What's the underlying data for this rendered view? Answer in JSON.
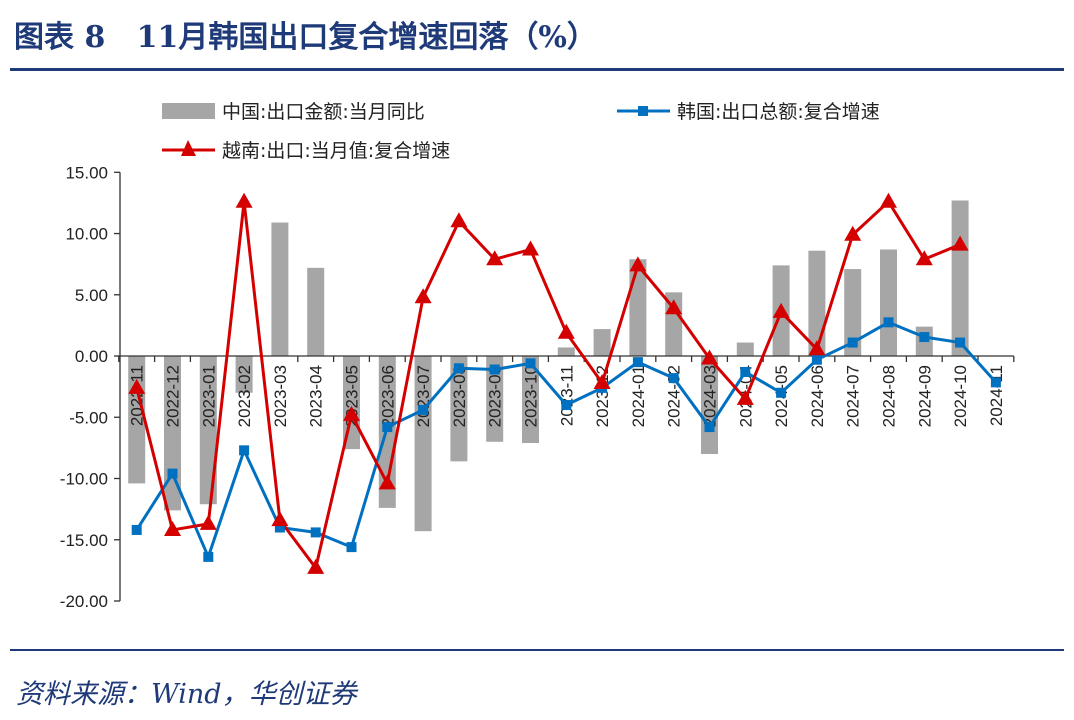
{
  "header": {
    "title": "图表 8   11月韩国出口复合增速回落（%）"
  },
  "footer": {
    "source": "资料来源：Wind，华创证券"
  },
  "chart_data": {
    "type": "bar+line",
    "title": "",
    "xlabel": "",
    "ylabel": "",
    "ylim": [
      -20,
      15
    ],
    "yticks": [
      "15.00",
      "10.00",
      "5.00",
      "0.00",
      "-5.00",
      "-10.00",
      "-15.00",
      "-20.00"
    ],
    "grid": false,
    "legend_placement": "top",
    "categories": [
      "2022-11",
      "2022-12",
      "2023-01",
      "2023-02",
      "2023-03",
      "2023-04",
      "2023-05",
      "2023-06",
      "2023-07",
      "2023-08",
      "2023-09",
      "2023-10",
      "2023-11",
      "2023-12",
      "2024-01",
      "2024-02",
      "2024-03",
      "2024-04",
      "2024-05",
      "2024-06",
      "2024-07",
      "2024-08",
      "2024-09",
      "2024-10",
      "2024-11"
    ],
    "series": [
      {
        "name": "中国:出口金额:当月同比",
        "type": "bar",
        "color": "#a6a6a6",
        "values": [
          -10.4,
          -12.6,
          -12.1,
          -3.0,
          10.9,
          7.2,
          -7.6,
          -12.4,
          -14.3,
          -8.6,
          -7.0,
          -7.1,
          0.7,
          2.2,
          7.9,
          5.2,
          -8.0,
          1.1,
          7.4,
          8.6,
          7.1,
          8.7,
          2.4,
          12.7,
          null
        ]
      },
      {
        "name": "韩国:出口总额:复合增速",
        "type": "line",
        "marker": "square",
        "color": "#0070c0",
        "values": [
          -14.2,
          -9.6,
          -16.4,
          -7.7,
          -14.0,
          -14.4,
          -15.6,
          -5.8,
          -4.4,
          -1.0,
          -1.1,
          -0.6,
          -4.0,
          -2.6,
          -0.5,
          -1.8,
          -5.8,
          -1.3,
          -3.0,
          -0.3,
          1.1,
          2.75,
          1.55,
          1.1,
          -2.15
        ]
      },
      {
        "name": "越南:出口:当月值:复合增速",
        "type": "line",
        "marker": "triangle",
        "color": "#d40000",
        "values": [
          -2.6,
          -14.2,
          -13.7,
          12.6,
          -13.4,
          -17.3,
          -4.8,
          -10.4,
          4.8,
          11.0,
          7.9,
          8.7,
          1.9,
          -2.2,
          7.4,
          3.9,
          -0.2,
          -3.5,
          3.6,
          0.55,
          9.9,
          12.6,
          7.9,
          9.1,
          null
        ]
      }
    ]
  }
}
